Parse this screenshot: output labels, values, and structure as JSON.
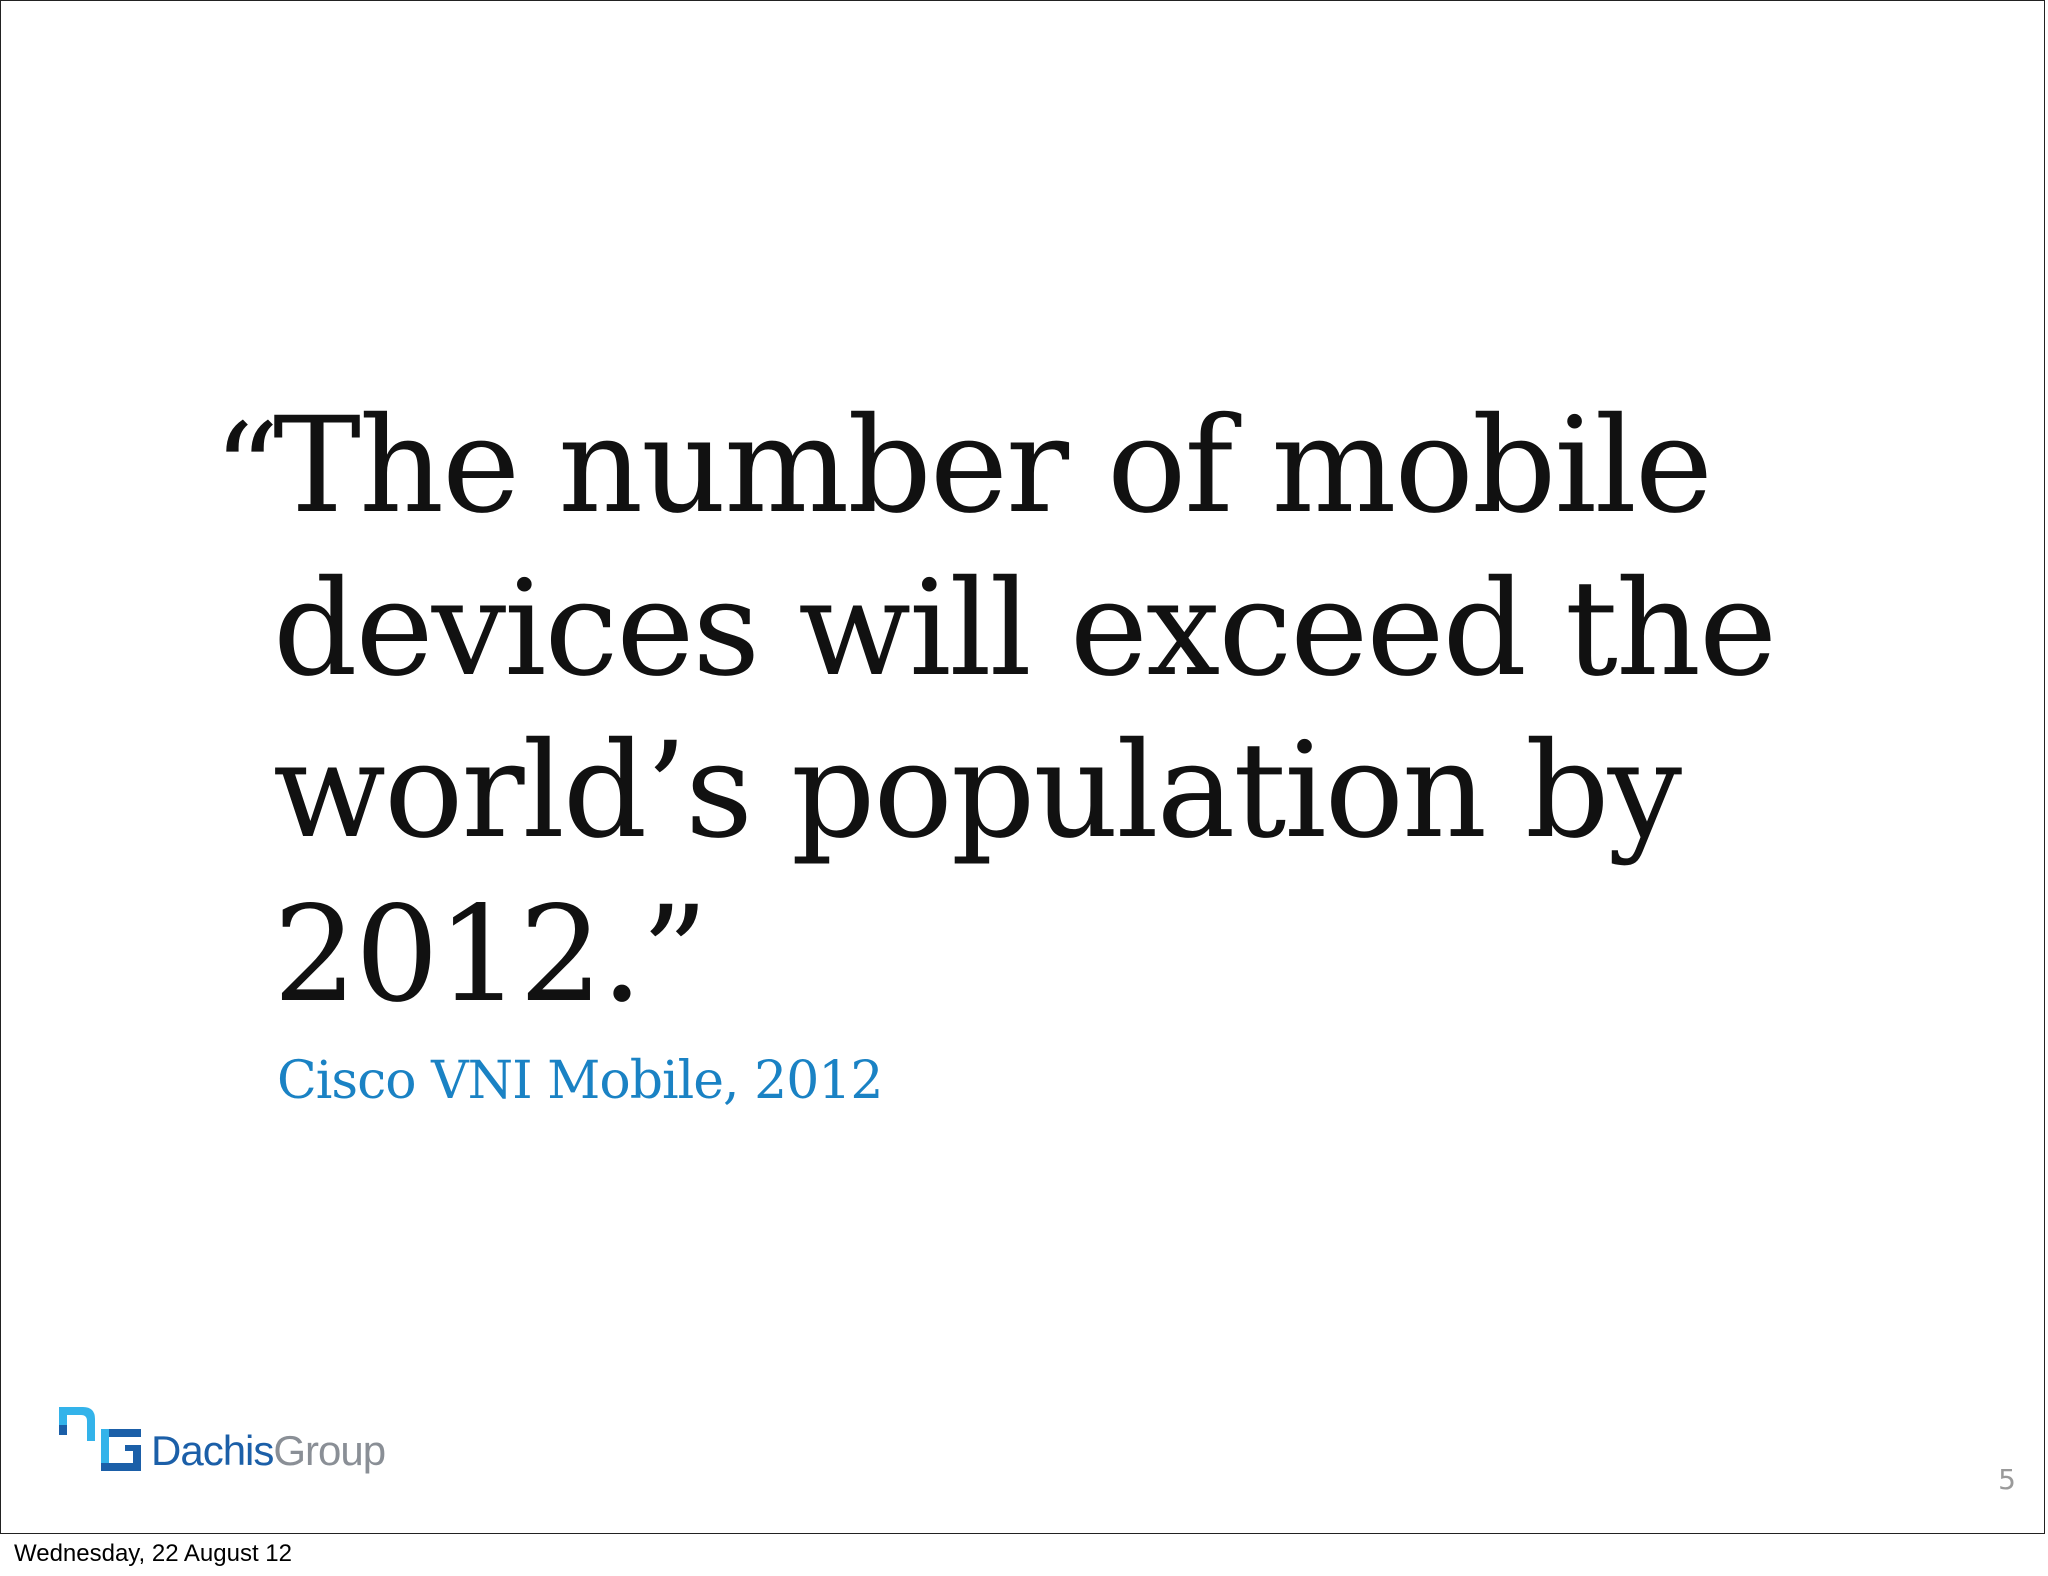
{
  "slide": {
    "quote_open": "“",
    "quote_lines": [
      "The number of mobile",
      "devices will exceed the",
      "world’s population by",
      "2012.”"
    ],
    "attribution": "Cisco VNI Mobile, 2012",
    "logo": {
      "brand_primary": "Dachis",
      "brand_secondary": "Group",
      "colors": {
        "primary": "#1b5fa8",
        "accent": "#33b3ea",
        "secondary": "#8a8f96"
      }
    },
    "page_number": "5"
  },
  "footer": {
    "date": "Wednesday, 22 August 12"
  },
  "colors": {
    "quote_text": "#111111",
    "attribution": "#1a82c4"
  }
}
